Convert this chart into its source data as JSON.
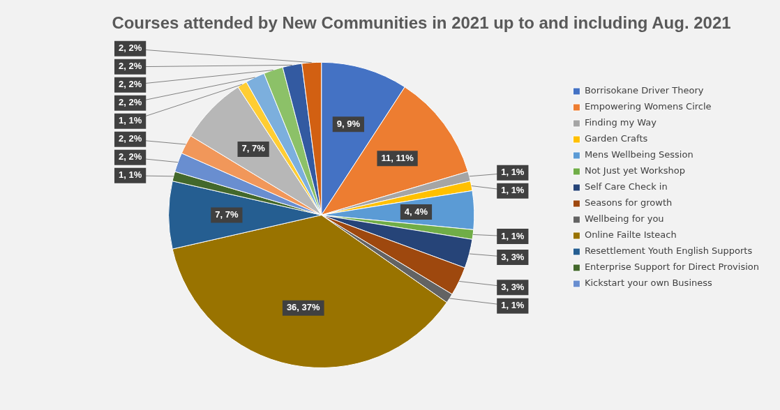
{
  "chart_data": {
    "type": "pie",
    "title": "Courses attended by New Communities in 2021 up to and including Aug. 2021",
    "categories": [
      "Borrisokane Driver Theory",
      "Empowering Womens Circle",
      "Finding my Way",
      "Garden Crafts",
      "Mens Wellbeing Session",
      "Not Just yet Workshop",
      "Self Care Check in",
      "Seasons for growth",
      "Wellbeing for you",
      "Online Failte Isteach",
      "Resettlement Youth English Supports",
      "Enterprise Support for Direct Provision",
      "Kickstart your own Business",
      null,
      null,
      null,
      null,
      null,
      null,
      null
    ],
    "values": [
      9,
      11,
      1,
      1,
      4,
      1,
      3,
      3,
      1,
      36,
      7,
      1,
      2,
      2,
      7,
      1,
      2,
      2,
      2,
      2
    ],
    "value_labels": [
      "9, 9%",
      "11, 11%",
      "1, 1%",
      "1, 1%",
      "4, 4%",
      "1, 1%",
      "3, 3%",
      "3, 3%",
      "1, 1%",
      "36, 37%",
      "7, 7%",
      "1, 1%",
      "2, 2%",
      "2, 2%",
      "7, 7%",
      "1, 1%",
      "2, 2%",
      "2, 2%",
      "2, 2%",
      "2, 2%"
    ],
    "colors": [
      "#4472c4",
      "#ed7d31",
      "#a5a5a5",
      "#ffc000",
      "#5b9bd5",
      "#70ad47",
      "#264478",
      "#9e480e",
      "#636363",
      "#997300",
      "#255e91",
      "#43682b",
      "#698ed0",
      "#f1975a",
      "#b7b7b7",
      "#ffcd33",
      "#7cafdd",
      "#8cc168",
      "#335aa1",
      "#d26012"
    ],
    "legend": "right"
  }
}
